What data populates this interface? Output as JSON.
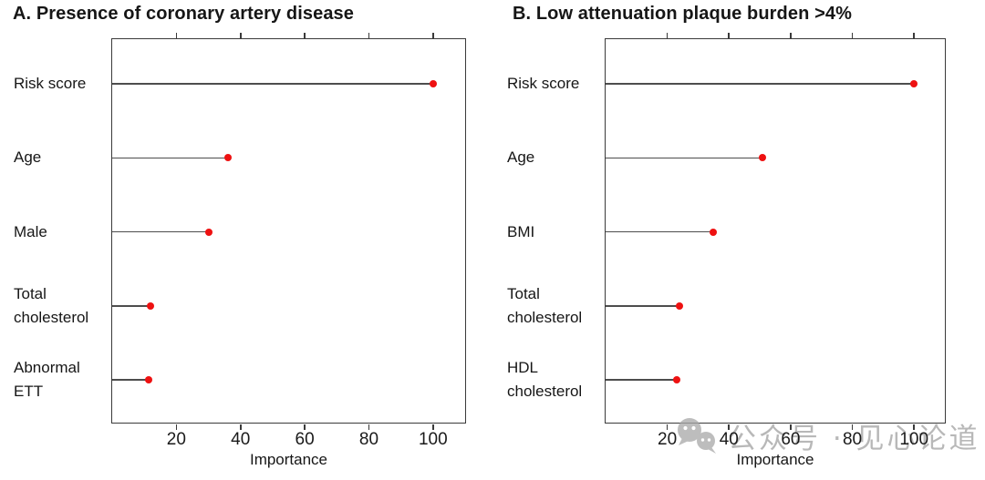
{
  "figure": {
    "watermark": {
      "icon": "wechat-chat-bubbles-icon",
      "text": "公众号 · 见心论道",
      "color": "#a0a0a0"
    },
    "colors": {
      "point": "#ee1111",
      "stick": "#4d4d4d",
      "axis": "#3a3a3a",
      "text": "#161616"
    }
  },
  "chart_data": [
    {
      "id": "A",
      "type": "bar",
      "style": "lollipop",
      "title": "A. Presence of coronary artery disease",
      "categories": [
        "Risk score",
        "Age",
        "Male",
        "Total cholesterol",
        "Abnormal ETT"
      ],
      "values": [
        100,
        36,
        30,
        12,
        11.5
      ],
      "xlabel": "Importance",
      "ylabel": "",
      "xlim": [
        0,
        110
      ],
      "xticks": [
        20,
        40,
        60,
        80,
        100
      ],
      "grid": false,
      "point_color": "#ee1111"
    },
    {
      "id": "B",
      "type": "bar",
      "style": "lollipop",
      "title": "B. Low attenuation plaque burden >4%",
      "categories": [
        "Risk score",
        "Age",
        "BMI",
        "Total cholesterol",
        "HDL cholesterol"
      ],
      "values": [
        100,
        51,
        35,
        24,
        23
      ],
      "xlabel": "Importance",
      "ylabel": "",
      "xlim": [
        0,
        110
      ],
      "xticks": [
        20,
        40,
        60,
        80,
        100
      ],
      "grid": false,
      "point_color": "#ee1111"
    }
  ]
}
